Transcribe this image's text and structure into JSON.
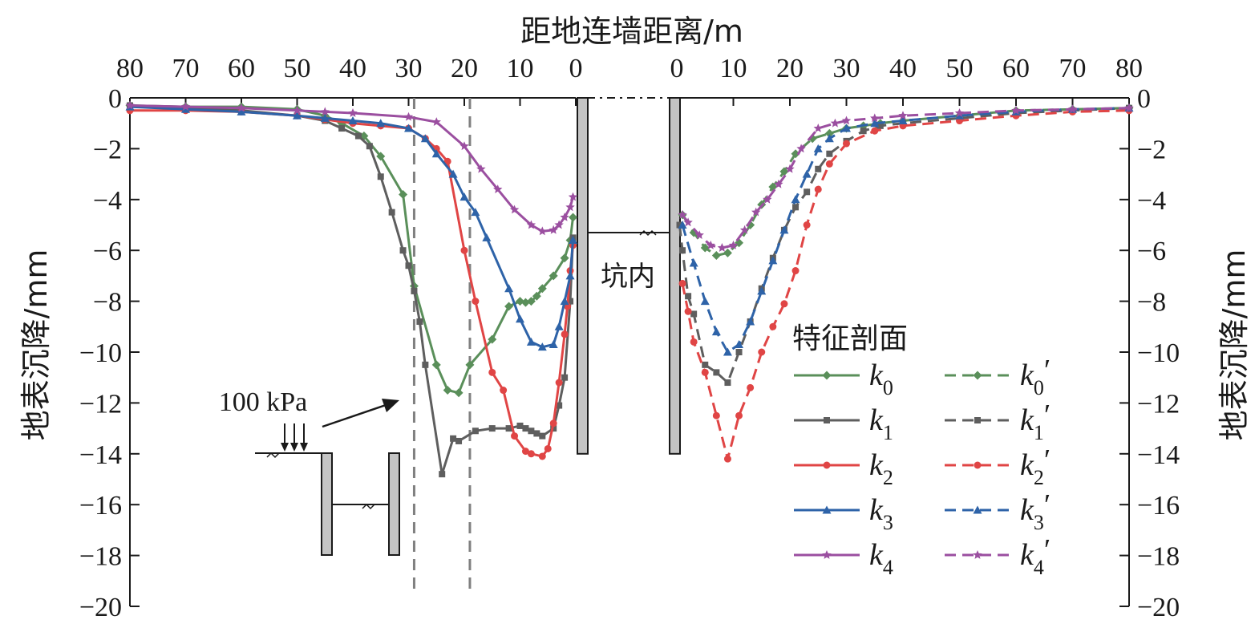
{
  "chart_data": {
    "type": "line",
    "xlabel": "距地连墙距离/m",
    "ylabel_left": "地表沉降/mm",
    "ylabel_right": "地表沉降/mm",
    "ylim": [
      -20,
      0
    ],
    "yticks": [
      "0",
      "−2",
      "−4",
      "−6",
      "−8",
      "−10",
      "−12",
      "−14",
      "−16",
      "−18",
      "−20"
    ],
    "left_xticks": [
      "80",
      "70",
      "60",
      "50",
      "40",
      "30",
      "20",
      "10",
      "0"
    ],
    "right_xticks": [
      "0",
      "10",
      "20",
      "30",
      "40",
      "50",
      "60",
      "70",
      "80"
    ],
    "left_xlim": [
      80,
      0
    ],
    "right_xlim": [
      0,
      80
    ],
    "grid": false,
    "legend_position": "bottom-right",
    "legend_title": "特征剖面",
    "annotations": {
      "pit_label": "坑内",
      "load_label": "100 kPa",
      "vertical_dashed_lines_left_x": [
        29,
        19
      ]
    },
    "colors": {
      "k0": "#5a8f5a",
      "k1": "#5e5e5e",
      "k2": "#e04545",
      "k3": "#2e63a8",
      "k4": "#9b4fa0"
    },
    "left_series": [
      {
        "name": "k0",
        "color": "#5a8f5a",
        "marker": "diamond",
        "x": [
          80,
          70,
          60,
          50,
          45,
          42,
          38,
          35,
          31,
          29,
          25,
          23,
          21,
          19,
          15,
          12,
          10,
          9,
          8,
          7,
          6,
          4,
          2,
          1,
          0.5
        ],
        "y": [
          -0.3,
          -0.35,
          -0.35,
          -0.45,
          -0.7,
          -1.0,
          -1.5,
          -2.3,
          -3.8,
          -7.4,
          -10.5,
          -11.5,
          -11.6,
          -10.5,
          -9.5,
          -8.2,
          -8.0,
          -8.05,
          -8.0,
          -7.8,
          -7.5,
          -7.0,
          -6.3,
          -5.6,
          -4.7
        ]
      },
      {
        "name": "k1",
        "color": "#5e5e5e",
        "marker": "square",
        "x": [
          80,
          70,
          60,
          50,
          45,
          42,
          39,
          37,
          35,
          33,
          31,
          30,
          29,
          28,
          27,
          24,
          22,
          21,
          18,
          15,
          12,
          10,
          9,
          8,
          7,
          6,
          4,
          3,
          2,
          1,
          0.5
        ],
        "y": [
          -0.3,
          -0.4,
          -0.5,
          -0.7,
          -0.9,
          -1.2,
          -1.5,
          -1.9,
          -3.1,
          -4.5,
          -6.0,
          -6.6,
          -7.6,
          -8.8,
          -10.5,
          -14.8,
          -13.4,
          -13.5,
          -13.1,
          -13.0,
          -13.0,
          -12.9,
          -13.0,
          -13.1,
          -13.2,
          -13.3,
          -13.0,
          -12.1,
          -11.0,
          -8.0,
          -5.5
        ]
      },
      {
        "name": "k2",
        "color": "#e04545",
        "marker": "circle",
        "x": [
          80,
          70,
          60,
          50,
          45,
          40,
          35,
          30,
          27,
          25,
          23,
          20,
          18,
          15,
          13,
          11,
          9,
          8,
          6,
          5,
          4,
          3,
          2,
          1.5,
          1,
          0.5
        ],
        "y": [
          -0.5,
          -0.5,
          -0.55,
          -0.7,
          -0.85,
          -1.0,
          -1.1,
          -1.2,
          -1.6,
          -2.0,
          -2.5,
          -6.0,
          -8.0,
          -10.8,
          -11.5,
          -13.3,
          -13.9,
          -14.0,
          -14.1,
          -13.8,
          -12.8,
          -11.2,
          -9.3,
          -8.2,
          -6.8,
          -5.8
        ]
      },
      {
        "name": "k3",
        "color": "#2e63a8",
        "marker": "triangle",
        "x": [
          80,
          70,
          60,
          50,
          45,
          40,
          35,
          30,
          27,
          25,
          22,
          20,
          18,
          16,
          12,
          10,
          8,
          6,
          4,
          3,
          2,
          1,
          0.5
        ],
        "y": [
          -0.35,
          -0.45,
          -0.55,
          -0.7,
          -0.8,
          -0.9,
          -1.0,
          -1.2,
          -1.6,
          -2.2,
          -3.0,
          -3.9,
          -4.5,
          -5.5,
          -7.5,
          -8.7,
          -9.6,
          -9.8,
          -9.7,
          -9.0,
          -8.0,
          -7.0,
          -5.6
        ]
      },
      {
        "name": "k4",
        "color": "#9b4fa0",
        "marker": "star",
        "x": [
          80,
          70,
          60,
          50,
          45,
          40,
          30,
          25,
          20,
          17,
          14,
          11,
          8,
          6,
          4,
          3,
          2,
          1,
          0.5
        ],
        "y": [
          -0.3,
          -0.35,
          -0.4,
          -0.5,
          -0.55,
          -0.6,
          -0.75,
          -0.95,
          -1.9,
          -2.8,
          -3.6,
          -4.4,
          -5.0,
          -5.25,
          -5.2,
          -5.0,
          -4.7,
          -4.3,
          -3.9
        ]
      }
    ],
    "right_series": [
      {
        "name": "k0′",
        "color": "#5a8f5a",
        "marker": "diamond",
        "x": [
          1,
          3,
          5,
          7,
          9,
          11,
          13,
          15,
          17,
          19,
          21,
          24,
          27,
          30,
          33,
          36,
          40,
          50,
          60,
          70,
          80
        ],
        "y": [
          -4.6,
          -5.3,
          -5.9,
          -6.2,
          -6.1,
          -5.7,
          -5.0,
          -4.2,
          -3.5,
          -2.9,
          -2.2,
          -1.6,
          -1.4,
          -1.2,
          -1.1,
          -1.0,
          -0.9,
          -0.7,
          -0.5,
          -0.45,
          -0.4
        ]
      },
      {
        "name": "k1′",
        "color": "#5e5e5e",
        "marker": "square",
        "x": [
          0.5,
          1,
          2,
          3,
          5,
          7,
          9,
          11,
          13,
          15,
          17,
          19,
          21,
          23,
          25,
          27,
          30,
          33,
          36,
          40,
          50,
          60,
          70,
          80
        ],
        "y": [
          -5.0,
          -6.0,
          -7.8,
          -8.5,
          -10.5,
          -10.8,
          -11.2,
          -10.0,
          -8.8,
          -7.5,
          -6.3,
          -5.2,
          -4.3,
          -3.7,
          -2.8,
          -2.2,
          -1.7,
          -1.3,
          -1.1,
          -1.0,
          -0.8,
          -0.6,
          -0.5,
          -0.4
        ]
      },
      {
        "name": "k2′",
        "color": "#e04545",
        "marker": "circle",
        "x": [
          1,
          2,
          3,
          5,
          7,
          9,
          11,
          13,
          15,
          17,
          19,
          21,
          23,
          25,
          27,
          30,
          35,
          40,
          50,
          60,
          70,
          80
        ],
        "y": [
          -7.3,
          -8.4,
          -9.6,
          -10.8,
          -12.5,
          -14.2,
          -12.5,
          -11.4,
          -10.0,
          -9.0,
          -8.1,
          -6.8,
          -5.0,
          -3.6,
          -2.6,
          -1.8,
          -1.3,
          -1.1,
          -0.9,
          -0.7,
          -0.55,
          -0.5
        ]
      },
      {
        "name": "k3′",
        "color": "#2e63a8",
        "marker": "triangle",
        "x": [
          1,
          3,
          5,
          7,
          9,
          11,
          13,
          15,
          17,
          19,
          21,
          23,
          25,
          27,
          30,
          35,
          40,
          50,
          60,
          70,
          80
        ],
        "y": [
          -5.0,
          -6.5,
          -8.0,
          -9.2,
          -10.0,
          -9.7,
          -8.8,
          -7.6,
          -6.4,
          -5.2,
          -4.0,
          -3.0,
          -2.0,
          -1.6,
          -1.2,
          -1.0,
          -0.9,
          -0.7,
          -0.55,
          -0.45,
          -0.4
        ]
      },
      {
        "name": "k4′",
        "color": "#9b4fa0",
        "marker": "star",
        "x": [
          1,
          2,
          4,
          6,
          8,
          10,
          12,
          14,
          16,
          18,
          20,
          22,
          25,
          28,
          30,
          35,
          40,
          50,
          60,
          70,
          80
        ],
        "y": [
          -4.6,
          -4.9,
          -5.4,
          -5.8,
          -5.9,
          -5.8,
          -5.2,
          -4.5,
          -4.0,
          -3.4,
          -2.8,
          -2.0,
          -1.2,
          -1.0,
          -0.9,
          -0.8,
          -0.7,
          -0.6,
          -0.5,
          -0.45,
          -0.4
        ]
      }
    ],
    "legend": [
      {
        "label": "k",
        "sub": "0",
        "prime": "",
        "color": "#5a8f5a",
        "marker": "diamond",
        "dash": false
      },
      {
        "label": "k",
        "sub": "1",
        "prime": "",
        "color": "#5e5e5e",
        "marker": "square",
        "dash": false
      },
      {
        "label": "k",
        "sub": "2",
        "prime": "",
        "color": "#e04545",
        "marker": "circle",
        "dash": false
      },
      {
        "label": "k",
        "sub": "3",
        "prime": "",
        "color": "#2e63a8",
        "marker": "triangle",
        "dash": false
      },
      {
        "label": "k",
        "sub": "4",
        "prime": "",
        "color": "#9b4fa0",
        "marker": "star",
        "dash": false
      },
      {
        "label": "k",
        "sub": "0",
        "prime": "′",
        "color": "#5a8f5a",
        "marker": "diamond",
        "dash": true
      },
      {
        "label": "k",
        "sub": "1",
        "prime": "′",
        "color": "#5e5e5e",
        "marker": "square",
        "dash": true
      },
      {
        "label": "k",
        "sub": "2",
        "prime": "′",
        "color": "#e04545",
        "marker": "circle",
        "dash": true
      },
      {
        "label": "k",
        "sub": "3",
        "prime": "′",
        "color": "#2e63a8",
        "marker": "triangle",
        "dash": true
      },
      {
        "label": "k",
        "sub": "4",
        "prime": "′",
        "color": "#9b4fa0",
        "marker": "star",
        "dash": true
      }
    ]
  }
}
